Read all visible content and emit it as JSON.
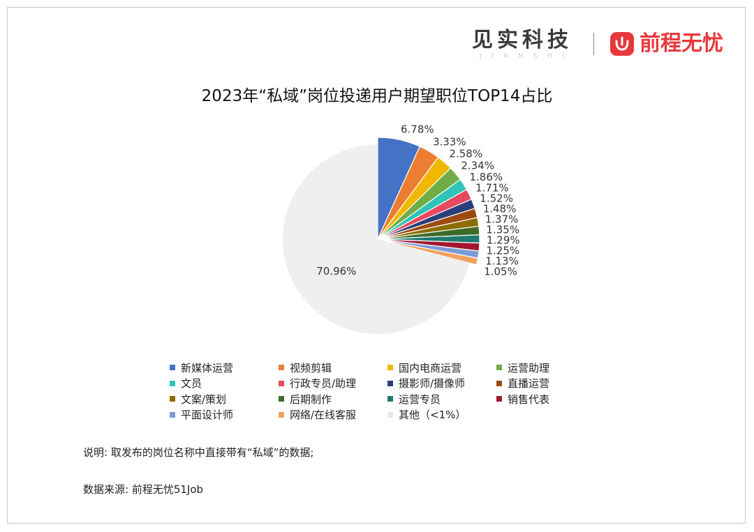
{
  "brand": {
    "left_logo_text": "见实科技",
    "left_logo_sub": "JIANSHI",
    "right_logo_text": "前程无忧"
  },
  "chart_data": {
    "type": "pie",
    "title": "2023年“私域”岗位投递用户期望职位TOP14占比",
    "slices": [
      {
        "label": "新媒体运营",
        "value": 6.78,
        "display": "6.78%",
        "color": "#4472c4"
      },
      {
        "label": "视频剪辑",
        "value": 3.33,
        "display": "3.33%",
        "color": "#ed7d31"
      },
      {
        "label": "国内电商运营",
        "value": 2.58,
        "display": "2.58%",
        "color": "#f2b800"
      },
      {
        "label": "运营助理",
        "value": 2.34,
        "display": "2.34%",
        "color": "#70ad47"
      },
      {
        "label": "文员",
        "value": 1.86,
        "display": "1.86%",
        "color": "#2ec4b6"
      },
      {
        "label": "行政专员/助理",
        "value": 1.71,
        "display": "1.71%",
        "color": "#e84a5f"
      },
      {
        "label": "摄影师/摄像师",
        "value": 1.52,
        "display": "1.52%",
        "color": "#2a3f7a"
      },
      {
        "label": "直播运营",
        "value": 1.48,
        "display": "1.48%",
        "color": "#9c4a10"
      },
      {
        "label": "文案/策划",
        "value": 1.37,
        "display": "1.37%",
        "color": "#8c6d00"
      },
      {
        "label": "后期制作",
        "value": 1.35,
        "display": "1.35%",
        "color": "#3f6b2a"
      },
      {
        "label": "运营专员",
        "value": 1.29,
        "display": "1.29%",
        "color": "#1f7a72"
      },
      {
        "label": "销售代表",
        "value": 1.25,
        "display": "1.25%",
        "color": "#a3172f"
      },
      {
        "label": "平面设计师",
        "value": 1.13,
        "display": "1.13%",
        "color": "#7b9bd6"
      },
      {
        "label": "网络/在线客服",
        "value": 1.05,
        "display": "1.05%",
        "color": "#f3a15f"
      },
      {
        "label": "其他（<1%）",
        "value": 70.96,
        "display": "70.96%",
        "color": "#efefef"
      }
    ],
    "legend_position": "bottom"
  },
  "notes": {
    "description": "说明: 取发布的岗位名称中直接带有“私域”的数据;",
    "source": "数据来源: 前程无忧51Job"
  }
}
